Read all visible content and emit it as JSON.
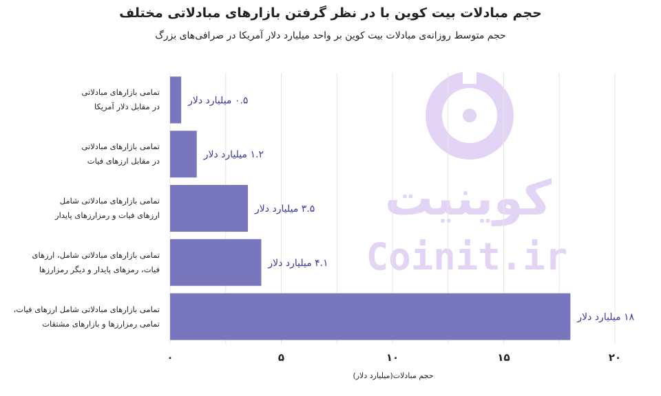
{
  "chart_data": {
    "type": "bar",
    "orientation": "horizontal",
    "title": "حجم مبادلات بیت کوین با در نظر گرفتن بازارهای مبادلاتی مختلف",
    "subtitle": "حجم متوسط روزانه‌ی مبادلات بیت کوین بر واحد میلیارد دلار آمریکا در صرافی‌های بزرگ",
    "xlabel": "حجم مبادلات(میلیارد دلار)",
    "xlim": [
      0,
      20
    ],
    "xticks": [
      {
        "value": 0,
        "label": "۰"
      },
      {
        "value": 5,
        "label": "۵"
      },
      {
        "value": 10,
        "label": "۱۰"
      },
      {
        "value": 15,
        "label": "۱۵"
      },
      {
        "value": 20,
        "label": "۲۰"
      }
    ],
    "grid": true,
    "bar_color": "#7876bd",
    "label_color": "#3a37a0",
    "categories": [
      {
        "line1": "تمامی بازارهای مبادلاتی",
        "line2": "در مقابل دلار آمریکا"
      },
      {
        "line1": "تمامی بازارهای مبادلاتی",
        "line2": "در مقابل ارزهای فیات"
      },
      {
        "line1": "تمامی بازارهای مبادلاتی شامل",
        "line2": "ارزهای فیات و رمزارزهای پایدار"
      },
      {
        "line1": "تمامی بازارهای مبادلاتی شامل، ارزهای",
        "line2": "فیات، رمزهای پایدار و دیگر رمزارزها"
      },
      {
        "line1": "تمامی بازارهای مبادلاتی شامل ارزهای فیات،",
        "line2": "تمامی رمزارزها و بازارهای مشتقات"
      }
    ],
    "values": [
      0.5,
      1.2,
      3.5,
      4.1,
      18
    ],
    "data_labels": [
      "۰.۵ میلیارد دلار",
      "۱.۲ میلیارد دلار",
      "۳.۵ میلیارد دلار",
      "۴.۱ میلیارد دلار",
      "۱۸ میلیارد دلار"
    ]
  },
  "watermark": {
    "logo_text": "کوینیت",
    "site_text": "Coinit.ir",
    "color": "#e3d3f5",
    "icon": "coin-icon"
  }
}
